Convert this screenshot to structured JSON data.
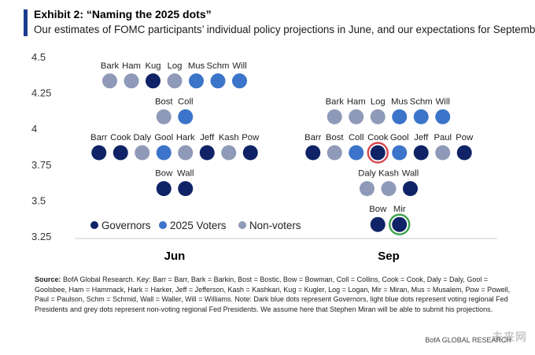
{
  "header": {
    "title": "Exhibit 2: “Naming the 2025 dots”",
    "subtitle": "Our estimates of FOMC participants’ individual policy projections in June, and our expectations for September"
  },
  "colors": {
    "governor": "#0f2366",
    "voter": "#3b74c9",
    "nonvoter": "#8f99b8",
    "accent": "#1a3d8f",
    "highlight_red": "#d9474f",
    "highlight_green": "#3aa14a",
    "axis": "#cfd3da"
  },
  "chart_data": {
    "type": "scatter",
    "title": "Naming the 2025 dots",
    "xlabel": "",
    "ylabel": "",
    "ylim": [
      3.25,
      4.5
    ],
    "yticks": [
      "4.5",
      "4.25",
      "4",
      "3.75",
      "3.5",
      "3.25"
    ],
    "yticks_values": [
      4.5,
      4.25,
      4.0,
      3.75,
      3.5,
      3.25
    ],
    "categories": [
      "Jun",
      "Sep"
    ],
    "legend": [
      {
        "key": "governor",
        "label": "Governors"
      },
      {
        "key": "voter",
        "label": "2025 Voters"
      },
      {
        "key": "nonvoter",
        "label": "Non-voters"
      }
    ],
    "series": [
      {
        "name": "Jun",
        "rows": [
          {
            "value": 4.375,
            "dots": [
              {
                "label": "Bark",
                "type": "nonvoter"
              },
              {
                "label": "Ham",
                "type": "nonvoter"
              },
              {
                "label": "Kug",
                "type": "governor"
              },
              {
                "label": "Log",
                "type": "nonvoter"
              },
              {
                "label": "Mus",
                "type": "voter"
              },
              {
                "label": "Schm",
                "type": "voter"
              },
              {
                "label": "Will",
                "type": "voter"
              }
            ]
          },
          {
            "value": 4.125,
            "dots": [
              {
                "label": "Bost",
                "type": "nonvoter"
              },
              {
                "label": "Coll",
                "type": "voter"
              }
            ]
          },
          {
            "value": 3.875,
            "dots": [
              {
                "label": "Barr",
                "type": "governor"
              },
              {
                "label": "Cook",
                "type": "governor"
              },
              {
                "label": "Daly",
                "type": "nonvoter"
              },
              {
                "label": "Gool",
                "type": "voter"
              },
              {
                "label": "Hark",
                "type": "nonvoter"
              },
              {
                "label": "Jeff",
                "type": "governor"
              },
              {
                "label": "Kash",
                "type": "nonvoter"
              },
              {
                "label": "Pow",
                "type": "governor"
              }
            ]
          },
          {
            "value": 3.625,
            "dots": [
              {
                "label": "Bow",
                "type": "governor"
              },
              {
                "label": "Wall",
                "type": "governor"
              }
            ]
          }
        ]
      },
      {
        "name": "Sep",
        "rows": [
          {
            "value": 4.125,
            "dots": [
              {
                "label": "Bark",
                "type": "nonvoter"
              },
              {
                "label": "Ham",
                "type": "nonvoter"
              },
              {
                "label": "Log",
                "type": "nonvoter"
              },
              {
                "label": "Mus",
                "type": "voter"
              },
              {
                "label": "Schm",
                "type": "voter"
              },
              {
                "label": "Will",
                "type": "voter"
              }
            ]
          },
          {
            "value": 3.875,
            "dots": [
              {
                "label": "Barr",
                "type": "governor"
              },
              {
                "label": "Bost",
                "type": "nonvoter"
              },
              {
                "label": "Coll",
                "type": "voter"
              },
              {
                "label": "Cook",
                "type": "governor",
                "highlight": "red"
              },
              {
                "label": "Gool",
                "type": "voter"
              },
              {
                "label": "Jeff",
                "type": "governor"
              },
              {
                "label": "Paul",
                "type": "nonvoter"
              },
              {
                "label": "Pow",
                "type": "governor"
              }
            ]
          },
          {
            "value": 3.625,
            "dots": [
              {
                "label": "Daly",
                "type": "nonvoter"
              },
              {
                "label": "Kash",
                "type": "nonvoter"
              },
              {
                "label": "Wall",
                "type": "governor"
              }
            ]
          },
          {
            "value": 3.375,
            "dots": [
              {
                "label": "Bow",
                "type": "governor"
              },
              {
                "label": "Mir",
                "type": "governor",
                "highlight": "green"
              }
            ]
          }
        ]
      }
    ]
  },
  "footer": {
    "source_label": "Source:",
    "source_text": "BofA Global Research. Key: Barr = Barr, Bark = Barkin, Bost = Bostic, Bow = Bowman, Coll = Collins, Cook = Cook, Daly = Daly, Gool = Goolsbee, Ham = Hammack, Hark = Harker, Jeff = Jefferson, Kash = Kashkari, Kug = Kugler, Log = Logan, Mir = Miran, Mus = Musalem, Pow = Powell, Paul = Paulson, Schm = Schmid, Wall = Waller, Will = Williams. Note: Dark blue dots represent Governors, light blue dots represent voting regional Fed Presidents and grey dots represent non-voting regional Fed Presidents. We assume here that Stephen Miran will be able to submit his projections.",
    "brand": "BofA GLOBAL RESEARCH",
    "watermark": "未来网"
  }
}
